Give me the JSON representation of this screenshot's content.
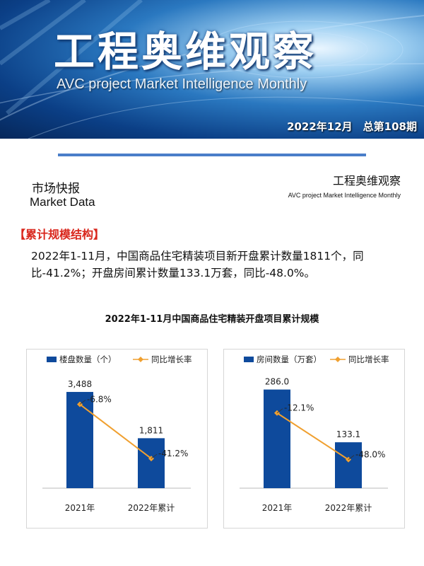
{
  "banner": {
    "title": "工程奥维观察",
    "subtitle": "AVC  project Market Intelligence Monthly",
    "issue": "2022年12月　总第108期"
  },
  "section": {
    "cn": "市场快报",
    "en": "Market Data"
  },
  "publication": {
    "cn": "工程奥维观察",
    "en": "AVC  project Market Intelligence Monthly"
  },
  "tag": "【累计规模结构】",
  "paragraph": "2022年1-11月，中国商品住宅精装项目新开盘累计数量1811个，同比-41.2%；开盘房间累计数量133.1万套，同比-48.0%。",
  "chart_title": "2022年1-11月中国商品住宅精装开盘项目累计规模",
  "colors": {
    "bar": "#0e4a9c",
    "line": "#f0a030",
    "tag": "#d9261c",
    "rule": "#4a7ec9"
  },
  "chart_data": [
    {
      "type": "bar",
      "categories": [
        "2021年",
        "2022年累计"
      ],
      "series": [
        {
          "name": "楼盘数量（个）",
          "type": "bar",
          "values": [
            3488,
            1811
          ],
          "labels": [
            "3,488",
            "1,811"
          ]
        },
        {
          "name": "同比增长率",
          "type": "line",
          "values": [
            -6.8,
            -41.2
          ],
          "labels": [
            "-6.8%",
            "-41.2%"
          ]
        }
      ],
      "bar_max": 4000,
      "line_range": [
        -60,
        10
      ],
      "legend": "top"
    },
    {
      "type": "bar",
      "categories": [
        "2021年",
        "2022年累计"
      ],
      "series": [
        {
          "name": "房间数量（万套）",
          "type": "bar",
          "values": [
            286.0,
            133.1
          ],
          "labels": [
            "286.0",
            "133.1"
          ]
        },
        {
          "name": "同比增长率",
          "type": "line",
          "values": [
            -12.1,
            -48.0
          ],
          "labels": [
            "-12.1%",
            "-48.0%"
          ]
        }
      ],
      "bar_max": 320,
      "line_range": [
        -70,
        15
      ],
      "legend": "top"
    }
  ]
}
